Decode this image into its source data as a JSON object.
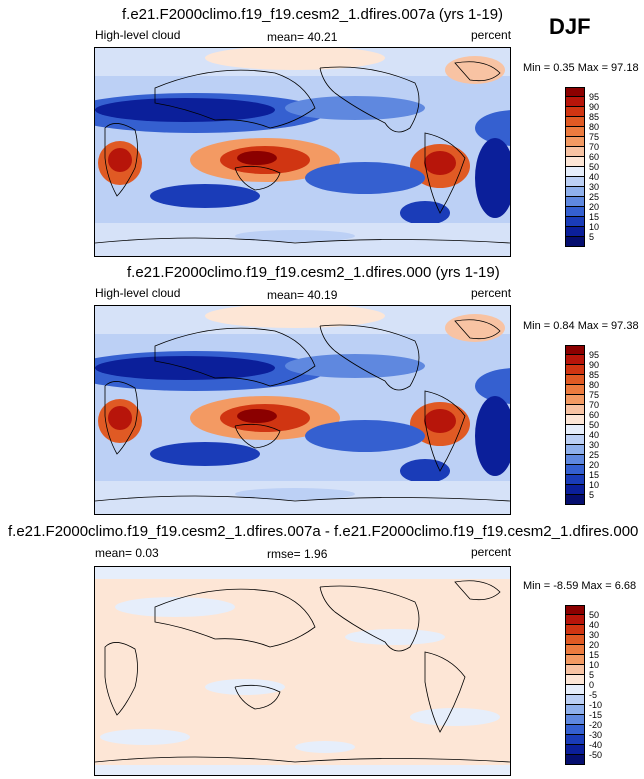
{
  "season": "DJF",
  "panels": [
    {
      "id": "test",
      "title": "f.e21.F2000climo.f19_f19.cesm2_1.dfires.007a (yrs 1-19)",
      "left_label": "High-level cloud",
      "center_label": "mean=  40.21",
      "right_label": "percent",
      "minmax": "Min =   0.35 Max =  97.18",
      "colorbar_labels": [
        "95",
        "90",
        "85",
        "80",
        "75",
        "70",
        "60",
        "50",
        "40",
        "30",
        "25",
        "20",
        "15",
        "10",
        "5"
      ],
      "colorbar_colors": [
        "#8b0000",
        "#b7150a",
        "#d03512",
        "#e05a24",
        "#ec7b3f",
        "#f39a63",
        "#f8c3a3",
        "#fde6d6",
        "#e6eefb",
        "#bcd0f5",
        "#8fb0ec",
        "#5f88df",
        "#3560d0",
        "#1a3cb8",
        "#0b1f9a",
        "#050e6f"
      ]
    },
    {
      "id": "ctrl",
      "title": "f.e21.F2000climo.f19_f19.cesm2_1.dfires.000 (yrs 1-19)",
      "left_label": "High-level cloud",
      "center_label": "mean=  40.19",
      "right_label": "percent",
      "minmax": "Min =   0.84 Max =  97.38",
      "colorbar_labels": [
        "95",
        "90",
        "85",
        "80",
        "75",
        "70",
        "60",
        "50",
        "40",
        "30",
        "25",
        "20",
        "15",
        "10",
        "5"
      ],
      "colorbar_colors": [
        "#8b0000",
        "#b7150a",
        "#d03512",
        "#e05a24",
        "#ec7b3f",
        "#f39a63",
        "#f8c3a3",
        "#fde6d6",
        "#e6eefb",
        "#bcd0f5",
        "#8fb0ec",
        "#5f88df",
        "#3560d0",
        "#1a3cb8",
        "#0b1f9a",
        "#050e6f"
      ]
    },
    {
      "id": "diff",
      "title": "f.e21.F2000climo.f19_f19.cesm2_1.dfires.007a - f.e21.F2000climo.f19_f19.cesm2_1.dfires.000",
      "left_label": "mean=   0.03",
      "center_label": "rmse=   1.96",
      "right_label": "percent",
      "minmax": "Min =  -8.59 Max =   6.68",
      "colorbar_labels": [
        "50",
        "40",
        "30",
        "20",
        "15",
        "10",
        "5",
        "0",
        "-5",
        "-10",
        "-15",
        "-20",
        "-30",
        "-40",
        "-50"
      ],
      "colorbar_colors": [
        "#8b0000",
        "#b7150a",
        "#d03512",
        "#e05a24",
        "#ec7b3f",
        "#f39a63",
        "#f8c3a3",
        "#fde6d6",
        "#e6eefb",
        "#bcd0f5",
        "#8fb0ec",
        "#5f88df",
        "#3560d0",
        "#1a3cb8",
        "#0b1f9a",
        "#050e6f"
      ]
    }
  ]
}
